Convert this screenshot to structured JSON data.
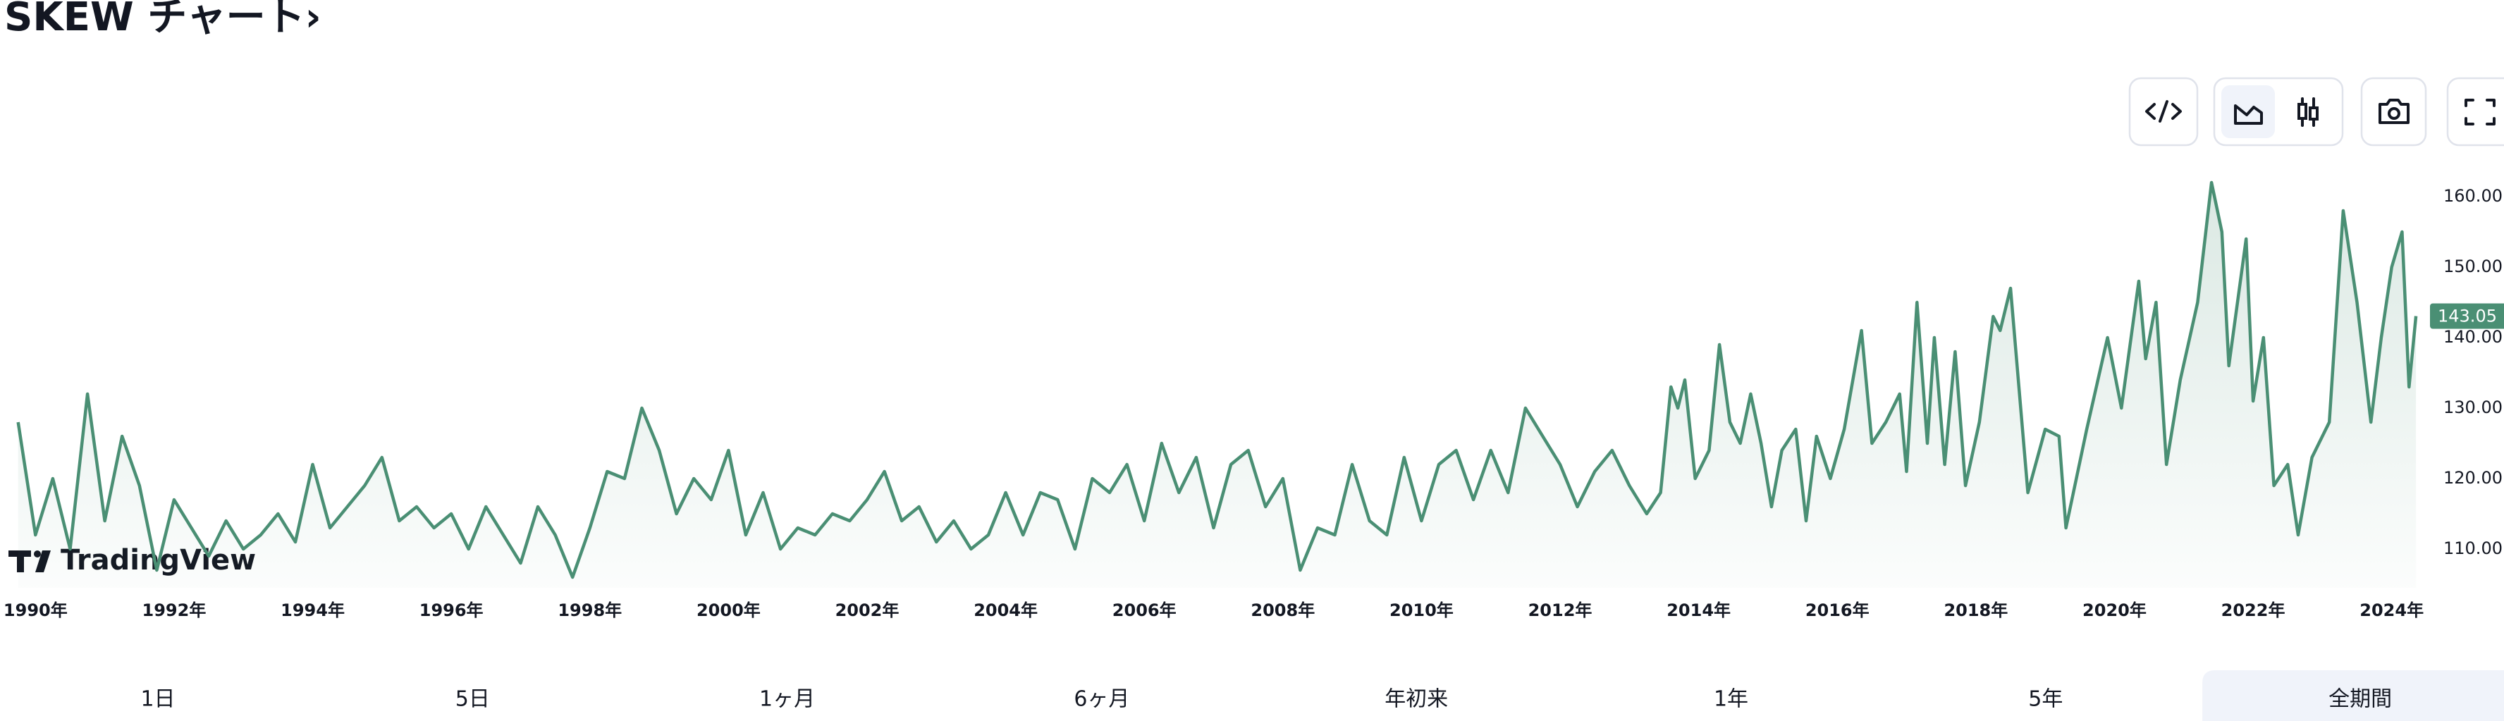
{
  "header": {
    "title": "SKEW チャート›"
  },
  "chart_data": {
    "type": "line",
    "area": true,
    "color": "#4a8f74",
    "watermark": "TradingView",
    "grid": false,
    "x": [
      1989.75,
      1990,
      1990.25,
      1990.5,
      1990.75,
      1991,
      1991.25,
      1991.5,
      1991.75,
      1992,
      1992.25,
      1992.5,
      1992.75,
      1993,
      1993.25,
      1993.5,
      1993.75,
      1994,
      1994.25,
      1994.5,
      1994.75,
      1995,
      1995.25,
      1995.5,
      1995.75,
      1996,
      1996.25,
      1996.5,
      1996.75,
      1997,
      1997.25,
      1997.5,
      1997.75,
      1998,
      1998.25,
      1998.5,
      1998.75,
      1999,
      1999.25,
      1999.5,
      1999.75,
      2000,
      2000.25,
      2000.5,
      2000.75,
      2001,
      2001.25,
      2001.5,
      2001.75,
      2002,
      2002.25,
      2002.5,
      2002.75,
      2003,
      2003.25,
      2003.5,
      2003.75,
      2004,
      2004.25,
      2004.5,
      2004.75,
      2005,
      2005.25,
      2005.5,
      2005.75,
      2006,
      2006.25,
      2006.5,
      2006.75,
      2007,
      2007.25,
      2007.5,
      2007.75,
      2008,
      2008.25,
      2008.5,
      2008.75,
      2009,
      2009.25,
      2009.5,
      2009.75,
      2010,
      2010.25,
      2010.5,
      2010.75,
      2011,
      2011.25,
      2011.5,
      2011.75,
      2012,
      2012.25,
      2012.5,
      2012.75,
      2013,
      2013.25,
      2013.45,
      2013.6,
      2013.7,
      2013.8,
      2013.95,
      2014.15,
      2014.3,
      2014.45,
      2014.6,
      2014.75,
      2014.9,
      2015.05,
      2015.2,
      2015.4,
      2015.55,
      2015.7,
      2015.9,
      2016.1,
      2016.35,
      2016.5,
      2016.7,
      2016.9,
      2017.0,
      2017.15,
      2017.3,
      2017.4,
      2017.55,
      2017.7,
      2017.85,
      2018.05,
      2018.25,
      2018.35,
      2018.5,
      2018.75,
      2019.0,
      2019.2,
      2019.3,
      2019.6,
      2019.9,
      2020.1,
      2020.35,
      2020.45,
      2020.6,
      2020.75,
      2020.95,
      2021.2,
      2021.4,
      2021.55,
      2021.65,
      2021.9,
      2022.0,
      2022.15,
      2022.3,
      2022.5,
      2022.65,
      2022.85,
      2023.1,
      2023.3,
      2023.5,
      2023.7,
      2023.85,
      2024.0,
      2024.15,
      2024.25,
      2024.35
    ],
    "values": [
      128,
      112,
      120,
      110,
      132,
      114,
      126,
      119,
      107,
      117,
      113,
      109,
      114,
      110,
      112,
      115,
      111,
      122,
      113,
      116,
      119,
      123,
      114,
      116,
      113,
      115,
      110,
      116,
      112,
      108,
      116,
      112,
      106,
      113,
      121,
      120,
      130,
      124,
      115,
      120,
      117,
      124,
      112,
      118,
      110,
      113,
      112,
      115,
      114,
      117,
      121,
      114,
      116,
      111,
      114,
      110,
      112,
      118,
      112,
      118,
      117,
      110,
      120,
      118,
      122,
      114,
      125,
      118,
      123,
      113,
      122,
      124,
      116,
      120,
      107,
      113,
      112,
      122,
      114,
      112,
      123,
      114,
      122,
      124,
      117,
      124,
      118,
      130,
      126,
      122,
      116,
      121,
      124,
      119,
      115,
      118,
      133,
      130,
      134,
      120,
      124,
      139,
      128,
      125,
      132,
      125,
      116,
      124,
      127,
      114,
      126,
      120,
      127,
      141,
      125,
      128,
      132,
      121,
      145,
      125,
      140,
      122,
      138,
      119,
      128,
      143,
      141,
      147,
      118,
      127,
      126,
      113,
      127,
      140,
      130,
      148,
      137,
      145,
      122,
      134,
      145,
      162,
      155,
      136,
      154,
      131,
      140,
      119,
      122,
      112,
      123,
      128,
      158,
      145,
      128,
      140,
      150,
      155,
      133,
      143.05
    ],
    "xlim": [
      1989.6,
      2024.4
    ],
    "xticks": [
      {
        "value": 1990,
        "label": "1990年"
      },
      {
        "value": 1992,
        "label": "1992年"
      },
      {
        "value": 1994,
        "label": "1994年"
      },
      {
        "value": 1996,
        "label": "1996年"
      },
      {
        "value": 1998,
        "label": "1998年"
      },
      {
        "value": 2000,
        "label": "2000年"
      },
      {
        "value": 2002,
        "label": "2002年"
      },
      {
        "value": 2004,
        "label": "2004年"
      },
      {
        "value": 2006,
        "label": "2006年"
      },
      {
        "value": 2008,
        "label": "2008年"
      },
      {
        "value": 2010,
        "label": "2010年"
      },
      {
        "value": 2012,
        "label": "2012年"
      },
      {
        "value": 2014,
        "label": "2014年"
      },
      {
        "value": 2016,
        "label": "2016年"
      },
      {
        "value": 2018,
        "label": "2018年"
      },
      {
        "value": 2020,
        "label": "2020年"
      },
      {
        "value": 2022,
        "label": "2022年"
      },
      {
        "value": 2024,
        "label": "2024年"
      }
    ],
    "ylim": [
      104.5,
      165.3
    ],
    "yticks": [
      {
        "value": 110,
        "label": "110.00"
      },
      {
        "value": 120,
        "label": "120.00"
      },
      {
        "value": 130,
        "label": "130.00"
      },
      {
        "value": 140,
        "label": "140.00"
      },
      {
        "value": 150,
        "label": "150.00"
      },
      {
        "value": 160,
        "label": "160.00"
      }
    ]
  },
  "range_tabs": {
    "items": [
      "1日",
      "5日",
      "1ヶ月",
      "6ヶ月",
      "年初来",
      "1年",
      "5年",
      "全期間"
    ],
    "selected": 7
  }
}
